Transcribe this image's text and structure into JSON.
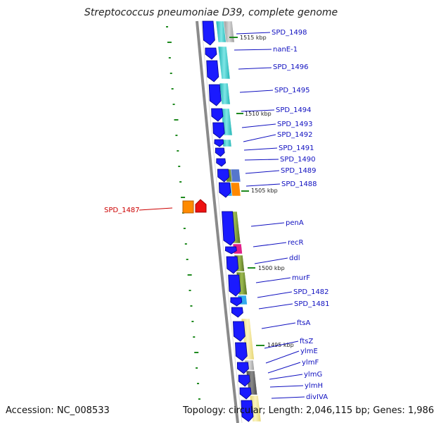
{
  "title": "Streptococcus pneumoniae D39, complete genome",
  "footer": {
    "accession": "Accession: NC_008533",
    "topology": "Topology: circular; Length: 2,046,115 bp; Genes: 1,986"
  },
  "scale_labels": [
    "1515 kbp",
    "1510 kbp",
    "1505 kbp",
    "1500 kbp",
    "1495 kbp"
  ],
  "gene_labels": [
    "SPD_1498",
    "nanE-1",
    "SPD_1496",
    "SPD_1495",
    "SPD_1494",
    "SPD_1493",
    "SPD_1492",
    "SPD_1491",
    "SPD_1490",
    "SPD_1489",
    "SPD_1488",
    "SPD_1487",
    "penA",
    "recR",
    "ddl",
    "murF",
    "SPD_1482",
    "SPD_1481",
    "ftsA",
    "ftsZ",
    "ylmE",
    "ylmF",
    "ylmG",
    "ylmH",
    "divIVA"
  ],
  "colors": {
    "gene_arrow": "#1a1aff",
    "label": "#1010c0",
    "highlight_label": "#cc0000",
    "backbone": "#777777",
    "tick": "#1f8a1f",
    "cyan": "#2bc6c6",
    "olive": "#6f8f2a",
    "magenta": "#e0208a",
    "sky": "#33aaee",
    "orange": "#ff8800",
    "red": "#ee1111",
    "pale_yellow": "#f3e79a",
    "grey": "#8a8a8a",
    "dark_grey": "#555555",
    "pink": "#f0a0a0"
  }
}
